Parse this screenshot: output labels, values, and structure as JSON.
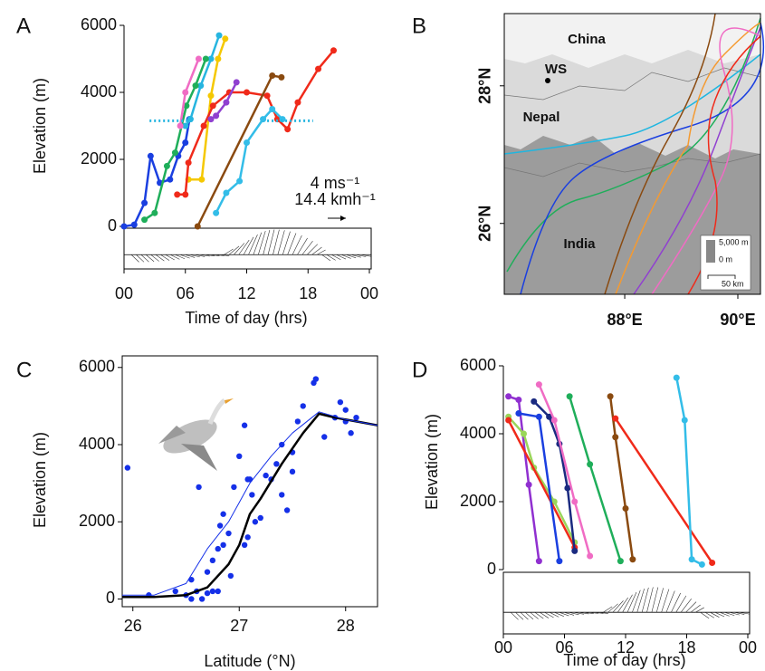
{
  "chart_data": [
    {
      "type": "line",
      "panel": "A",
      "ylabel": "Elevation (m)",
      "xlabel": "Time of day (hrs)",
      "annotations": [
        "4 ms⁻¹",
        "14.4 kmh⁻¹"
      ],
      "markers": true,
      "xlim": [
        0,
        24
      ],
      "ylim": [
        0,
        6000
      ],
      "xticks": [
        {
          "value": 0,
          "label": "00"
        },
        {
          "value": 6,
          "label": "06"
        },
        12,
        18,
        {
          "value": 24,
          "label": "00"
        }
      ],
      "yticks": [
        0,
        2000,
        4000,
        6000
      ],
      "series": [
        {
          "color": "#1a3fe0",
          "x": [
            0,
            1,
            2,
            2.6,
            3.5,
            4.5,
            5.3,
            6,
            6.4
          ],
          "values": [
            0,
            50,
            700,
            2100,
            1300,
            1400,
            2100,
            2500,
            3200
          ]
        },
        {
          "color": "#26b5e0",
          "x": [
            6,
            6.5,
            7.5,
            8.5,
            9.3
          ],
          "values": [
            3000,
            3200,
            4200,
            5000,
            5700
          ]
        },
        {
          "color": "#1fae5a",
          "x": [
            2,
            3,
            4.2,
            5,
            6.1,
            7,
            8
          ],
          "values": [
            200,
            400,
            1800,
            2200,
            3600,
            4200,
            5000
          ]
        },
        {
          "color": "#f06cc4",
          "x": [
            5.5,
            6,
            7.3
          ],
          "values": [
            3000,
            4000,
            5000
          ]
        },
        {
          "color": "#f5c800",
          "x": [
            6.3,
            7.6,
            8.5,
            9.2,
            9.9
          ],
          "values": [
            1400,
            1400,
            3900,
            5000,
            5600
          ]
        },
        {
          "color": "#f02a1a",
          "x": [
            5.2,
            6,
            6.3,
            7.8,
            8.7,
            10.3,
            12,
            14,
            15,
            16,
            17,
            19,
            20.5
          ],
          "values": [
            950,
            950,
            1900,
            3000,
            3600,
            4000,
            4000,
            3900,
            3200,
            2900,
            3700,
            4700,
            5250
          ]
        },
        {
          "color": "#9040d0",
          "x": [
            8.5,
            9,
            10,
            11
          ],
          "values": [
            3200,
            3300,
            3700,
            4300
          ]
        },
        {
          "color": "#8a4a10",
          "x": [
            7.2,
            14.5,
            15.4
          ],
          "values": [
            0,
            4500,
            4450
          ]
        },
        {
          "color": "#33bde8",
          "x": [
            9,
            10,
            11.3,
            12,
            13.6,
            14.5,
            15.5
          ],
          "values": [
            400,
            1000,
            1350,
            2500,
            3200,
            3500,
            3200
          ]
        },
        {
          "color": "#26b5e0",
          "dash": true,
          "x": [
            2.5,
            6.5
          ],
          "values": [
            3150,
            3150
          ]
        },
        {
          "color": "#26b5e0",
          "dash": true,
          "x": [
            14,
            18.5
          ],
          "values": [
            3150,
            3150
          ]
        }
      ]
    },
    {
      "type": "map",
      "panel": "B",
      "labels": [
        "China",
        "WS",
        "Nepal",
        "India"
      ],
      "xlim": [
        85.87,
        90.4
      ],
      "ylim": [
        24.97,
        29.05
      ],
      "xticks": [
        {
          "value": 88,
          "label": "88°E"
        },
        {
          "value": 90,
          "label": "90°E"
        }
      ],
      "yticks": [
        {
          "value": 28,
          "label": "28°N"
        },
        {
          "value": 26,
          "label": "26°N"
        }
      ],
      "scale_labels": [
        "5,000 m",
        "0 m",
        "50 km"
      ]
    },
    {
      "type": "scatter",
      "panel": "C",
      "ylabel": "Elevation (m)",
      "xlabel": "Latitude (°N)",
      "xlim": [
        25.9,
        28.3
      ],
      "ylim": [
        -200,
        6300
      ],
      "xticks": [
        26,
        27,
        28
      ],
      "yticks": [
        0,
        2000,
        4000,
        6000
      ],
      "series": [
        {
          "kind": "scatter",
          "color": "#1530e8",
          "x": [
            25.95,
            26.15,
            26.4,
            26.5,
            26.55,
            26.6,
            26.65,
            26.7,
            26.75,
            26.8,
            26.62,
            26.55,
            26.7,
            26.75,
            26.8,
            26.85,
            26.82,
            26.85,
            26.9,
            26.92,
            26.95,
            27.0,
            27.05,
            27.08,
            27.1,
            27.12,
            27.15,
            27.05,
            27.08,
            27.2,
            27.25,
            27.3,
            27.35,
            27.4,
            27.4,
            27.45,
            27.5,
            27.5,
            27.6,
            27.55,
            27.7,
            27.72,
            27.8,
            27.9,
            27.95,
            28.0,
            28.0,
            28.05,
            28.1
          ],
          "values": [
            3400,
            100,
            200,
            100,
            0,
            200,
            0,
            150,
            200,
            200,
            2900,
            500,
            700,
            1000,
            1300,
            1400,
            1900,
            2200,
            1700,
            600,
            2900,
            3700,
            4500,
            3100,
            3100,
            2700,
            2000,
            1400,
            1600,
            2100,
            3200,
            3100,
            3500,
            4000,
            2700,
            2300,
            3300,
            3800,
            5000,
            4600,
            5600,
            5700,
            4200,
            4700,
            5100,
            4900,
            4600,
            4300,
            4700
          ]
        },
        {
          "kind": "line",
          "color": "#000000",
          "width": 2.5,
          "x": [
            25.9,
            26.2,
            26.5,
            26.7,
            26.9,
            27.0,
            27.1,
            27.2,
            27.4,
            27.6,
            27.75,
            27.9,
            28.1,
            28.3
          ],
          "values": [
            50,
            50,
            100,
            300,
            900,
            1400,
            2200,
            2600,
            3500,
            4300,
            4800,
            4700,
            4600,
            4500
          ]
        },
        {
          "kind": "line",
          "color": "#1530e8",
          "width": 1,
          "x": [
            25.9,
            26.2,
            26.5,
            26.7,
            26.9,
            27.0,
            27.1,
            27.3,
            27.5,
            27.75,
            28.0,
            28.3
          ],
          "values": [
            100,
            100,
            400,
            1300,
            2000,
            2500,
            3000,
            3700,
            4300,
            4850,
            4650,
            4500
          ]
        }
      ]
    },
    {
      "type": "line",
      "panel": "D",
      "ylabel": "Elevation (m)",
      "xlabel": "Time of day (hrs)",
      "markers": true,
      "xlim": [
        0,
        24
      ],
      "ylim": [
        0,
        6000
      ],
      "xticks": [
        {
          "value": 0,
          "label": "00"
        },
        {
          "value": 6,
          "label": "06"
        },
        12,
        18,
        {
          "value": 24,
          "label": "00"
        }
      ],
      "yticks": [
        0,
        2000,
        4000,
        6000
      ],
      "series": [
        {
          "color": "#9030d0",
          "x": [
            0.5,
            1.5,
            2.5,
            3.5
          ],
          "values": [
            5100,
            5000,
            2500,
            250
          ]
        },
        {
          "color": "#9ad65a",
          "x": [
            0.5,
            2,
            3,
            5,
            7
          ],
          "values": [
            4500,
            4000,
            3000,
            2000,
            800
          ]
        },
        {
          "color": "#f02a1a",
          "x": [
            0.5,
            7
          ],
          "values": [
            4400,
            650
          ]
        },
        {
          "color": "#1a3fe0",
          "x": [
            1.5,
            3.5,
            5.5
          ],
          "values": [
            4600,
            4500,
            250
          ]
        },
        {
          "color": "#1a2a80",
          "x": [
            3,
            4.5,
            5.5,
            6.3,
            7
          ],
          "values": [
            4950,
            4500,
            3700,
            2400,
            550
          ]
        },
        {
          "color": "#f06cc4",
          "x": [
            3.5,
            5,
            7,
            8.5
          ],
          "values": [
            5450,
            4400,
            2000,
            400
          ]
        },
        {
          "color": "#1fae5a",
          "x": [
            6.5,
            8.5,
            11.5
          ],
          "values": [
            5100,
            3100,
            250
          ]
        },
        {
          "color": "#8a4a10",
          "x": [
            10.5,
            11,
            12,
            12.7
          ],
          "values": [
            5100,
            3900,
            1800,
            300
          ]
        },
        {
          "color": "#f02a1a",
          "x": [
            11,
            20.5
          ],
          "values": [
            4450,
            200
          ]
        },
        {
          "color": "#33bde8",
          "x": [
            17,
            17.8,
            18.5,
            19.5
          ],
          "values": [
            5650,
            4400,
            300,
            150
          ]
        }
      ]
    }
  ]
}
